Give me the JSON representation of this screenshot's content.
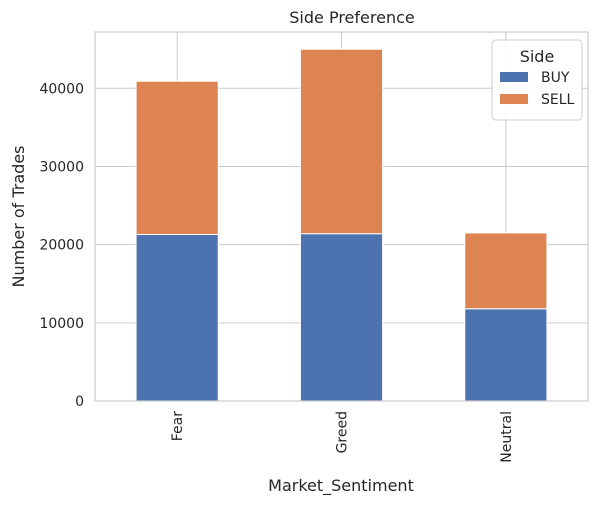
{
  "chart_data": {
    "type": "bar",
    "stacked": true,
    "title": "Side Preference",
    "xlabel": "Market_Sentiment",
    "ylabel": "Number of Trades",
    "categories": [
      "Fear",
      "Greed",
      "Neutral"
    ],
    "series": [
      {
        "name": "BUY",
        "color": "#4c72b0",
        "values": [
          21300,
          21400,
          11800
        ]
      },
      {
        "name": "SELL",
        "color": "#dd8452",
        "values": [
          19600,
          23600,
          9700
        ]
      }
    ],
    "ylim": [
      0,
      47200
    ],
    "yticks": [
      0,
      10000,
      20000,
      30000,
      40000
    ],
    "legend": {
      "title": "Side",
      "position": "top-right"
    },
    "grid": true
  }
}
